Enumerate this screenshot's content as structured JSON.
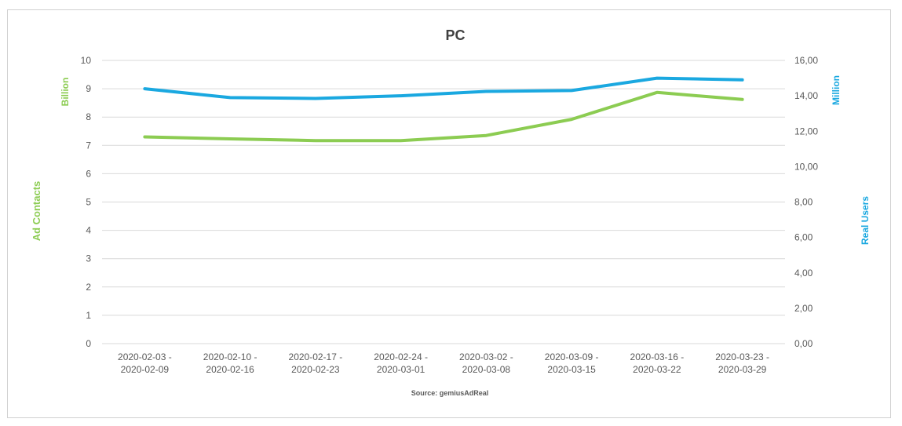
{
  "chart_data": {
    "type": "line",
    "title": "PC",
    "source": "Source: gemiusAdReal",
    "categories": [
      [
        "2020-02-03 -",
        "2020-02-09"
      ],
      [
        "2020-02-10 -",
        "2020-02-16"
      ],
      [
        "2020-02-17 -",
        "2020-02-23"
      ],
      [
        "2020-02-24 -",
        "2020-03-01"
      ],
      [
        "2020-03-02 -",
        "2020-03-08"
      ],
      [
        "2020-03-09 -",
        "2020-03-15"
      ],
      [
        "2020-03-16 -",
        "2020-03-22"
      ],
      [
        "2020-03-23 -",
        "2020-03-29"
      ]
    ],
    "left_axis": {
      "label": "Ad Contacts",
      "unit": "Billion",
      "ylim": [
        0,
        10
      ],
      "ticks": [
        "0",
        "1",
        "2",
        "3",
        "4",
        "5",
        "6",
        "7",
        "8",
        "9",
        "10"
      ],
      "color": "#8ccc52"
    },
    "right_axis": {
      "label": "Real Users",
      "unit": "Million",
      "ylim": [
        0,
        16
      ],
      "ticks": [
        "0,00",
        "2,00",
        "4,00",
        "6,00",
        "8,00",
        "10,00",
        "12,00",
        "14,00",
        "16,00"
      ],
      "color": "#1aa8e0"
    },
    "series": [
      {
        "axis": "left",
        "color": "#8ccc52",
        "values": [
          7.3,
          7.23,
          7.17,
          7.17,
          7.35,
          7.92,
          8.87,
          8.62
        ]
      },
      {
        "axis": "right",
        "color": "#1aa8e0",
        "values": [
          14.4,
          13.9,
          13.85,
          14.0,
          14.25,
          14.3,
          15.0,
          14.9
        ]
      }
    ],
    "grid": true
  }
}
